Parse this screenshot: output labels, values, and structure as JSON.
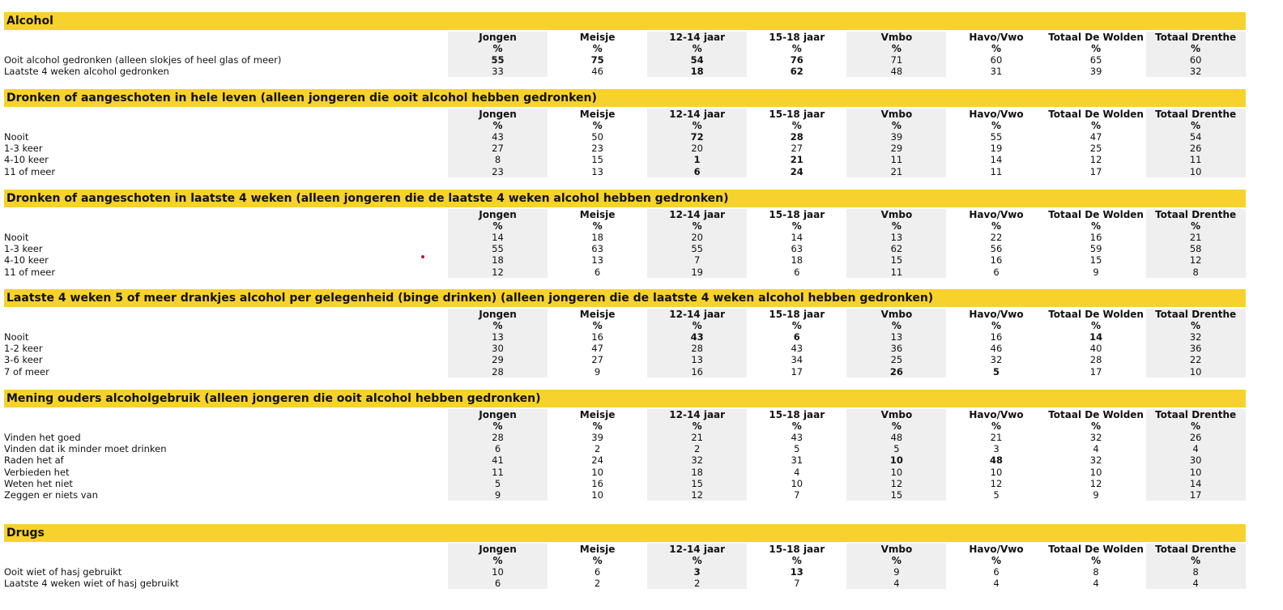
{
  "columns": [
    "Jongen",
    "Meisje",
    "12-14 jaar",
    "15-18 jaar",
    "Vmbo",
    "Havo/Vwo",
    "Totaal De Wolden",
    "Totaal Drenthe"
  ],
  "unit": "%",
  "sections": [
    {
      "title": "Alcohol",
      "rows": [
        {
          "label": "Ooit alcohol gedronken (alleen slokjes of heel glas of meer)",
          "values": [
            55,
            75,
            54,
            76,
            71,
            60,
            65,
            60
          ],
          "bold": [
            0,
            1,
            2,
            3
          ]
        },
        {
          "label": "Laatste 4 weken alcohol gedronken",
          "values": [
            33,
            46,
            18,
            62,
            48,
            31,
            39,
            32
          ],
          "bold": [
            2,
            3
          ]
        }
      ]
    },
    {
      "title": "Dronken of aangeschoten in hele leven (alleen jongeren die ooit alcohol hebben gedronken)",
      "rows": [
        {
          "label": "Nooit",
          "values": [
            43,
            50,
            72,
            28,
            39,
            55,
            47,
            54
          ],
          "bold": [
            2,
            3
          ]
        },
        {
          "label": "1-3 keer",
          "values": [
            27,
            23,
            20,
            27,
            29,
            19,
            25,
            26
          ]
        },
        {
          "label": "4-10 keer",
          "values": [
            8,
            15,
            1,
            21,
            11,
            14,
            12,
            11
          ],
          "bold": [
            2,
            3
          ]
        },
        {
          "label": "11 of meer",
          "values": [
            23,
            13,
            6,
            24,
            21,
            11,
            17,
            10
          ],
          "bold": [
            2,
            3
          ]
        }
      ]
    },
    {
      "title": "Dronken of aangeschoten in laatste 4 weken (alleen jongeren die de laatste 4 weken alcohol hebben gedronken)",
      "rows": [
        {
          "label": "Nooit",
          "values": [
            14,
            18,
            20,
            14,
            13,
            22,
            16,
            21
          ]
        },
        {
          "label": "1-3 keer",
          "values": [
            55,
            63,
            55,
            63,
            62,
            56,
            59,
            58
          ]
        },
        {
          "label": "4-10 keer",
          "values": [
            18,
            13,
            7,
            18,
            15,
            16,
            15,
            12
          ]
        },
        {
          "label": "11 of meer",
          "values": [
            12,
            6,
            19,
            6,
            11,
            6,
            9,
            8
          ]
        }
      ]
    },
    {
      "title": "Laatste 4 weken 5 of meer drankjes alcohol per gelegenheid (binge drinken) (alleen jongeren die de laatste 4 weken alcohol hebben gedronken)",
      "rows": [
        {
          "label": "Nooit",
          "values": [
            13,
            16,
            43,
            6,
            13,
            16,
            14,
            32
          ],
          "bold": [
            2,
            3,
            6
          ]
        },
        {
          "label": "1-2 keer",
          "values": [
            30,
            47,
            28,
            43,
            36,
            46,
            40,
            36
          ]
        },
        {
          "label": "3-6 keer",
          "values": [
            29,
            27,
            13,
            34,
            25,
            32,
            28,
            22
          ]
        },
        {
          "label": "7 of meer",
          "values": [
            28,
            9,
            16,
            17,
            26,
            5,
            17,
            10
          ],
          "bold": [
            4,
            5
          ]
        }
      ]
    },
    {
      "title": "Mening ouders alcoholgebruik (alleen jongeren die ooit alcohol hebben gedronken)",
      "rows": [
        {
          "label": "Vinden het goed",
          "values": [
            28,
            39,
            21,
            43,
            48,
            21,
            32,
            26
          ]
        },
        {
          "label": "Vinden dat ik minder moet drinken",
          "values": [
            6,
            2,
            2,
            5,
            5,
            3,
            4,
            4
          ]
        },
        {
          "label": "Raden het af",
          "values": [
            41,
            24,
            32,
            31,
            10,
            48,
            32,
            30
          ],
          "bold": [
            4,
            5
          ]
        },
        {
          "label": "Verbieden het",
          "values": [
            11,
            10,
            18,
            4,
            10,
            10,
            10,
            10
          ]
        },
        {
          "label": "Weten het niet",
          "values": [
            5,
            16,
            15,
            10,
            12,
            12,
            12,
            14
          ]
        },
        {
          "label": "Zeggen er niets van",
          "values": [
            9,
            10,
            12,
            7,
            15,
            5,
            9,
            17
          ]
        }
      ]
    },
    {
      "title": "Drugs",
      "rows": [
        {
          "label": "Ooit wiet of hasj gebruikt",
          "values": [
            10,
            6,
            3,
            13,
            9,
            6,
            8,
            8
          ],
          "bold": [
            2,
            3
          ]
        },
        {
          "label": "Laatste 4 weken wiet of hasj gebruikt",
          "values": [
            6,
            2,
            2,
            7,
            4,
            4,
            4,
            4
          ]
        }
      ]
    }
  ]
}
